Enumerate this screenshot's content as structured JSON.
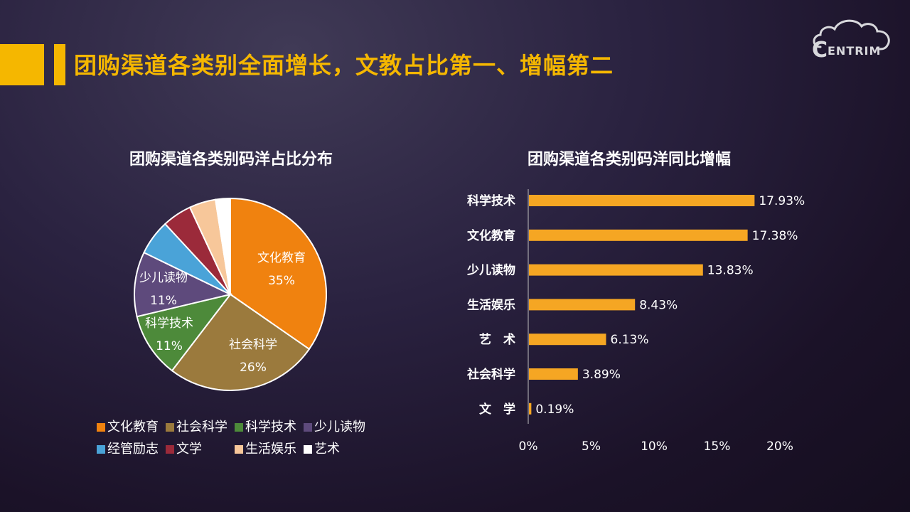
{
  "slide": {
    "title": "团购渠道各类别全面增长，文教占比第一、增幅第二",
    "logo_text": "ENTRIM",
    "logo_letter": "C"
  },
  "colors": {
    "accent": "#f5b700",
    "bar": "#f5a623"
  },
  "chart_data": [
    {
      "type": "pie",
      "title": "团购渠道各类别码洋占比分布",
      "slices": [
        {
          "name": "文化教育",
          "value": 35,
          "label": "35%",
          "color": "#f0820f",
          "show_label": true
        },
        {
          "name": "社会科学",
          "value": 26,
          "label": "26%",
          "color": "#9b7a3d",
          "show_label": true
        },
        {
          "name": "科学技术",
          "value": 11,
          "label": "11%",
          "color": "#4d8a3a",
          "show_label": true
        },
        {
          "name": "少儿读物",
          "value": 11,
          "label": "11%",
          "color": "#5e4a7c",
          "show_label": true
        },
        {
          "name": "经管励志",
          "value": 6,
          "label": "",
          "color": "#4aa3d8",
          "show_label": false
        },
        {
          "name": "文学",
          "value": 5,
          "label": "",
          "color": "#9b2a3a",
          "show_label": false
        },
        {
          "name": "生活娱乐",
          "value": 4.5,
          "label": "",
          "color": "#f7c79a",
          "show_label": false
        },
        {
          "name": "艺术",
          "value": 2.5,
          "label": "",
          "color": "#ffffff",
          "show_label": false
        }
      ],
      "legend": {
        "placement": "bottom",
        "rows": [
          [
            "文化教育",
            "社会科学",
            "科学技术",
            "少儿读物"
          ],
          [
            "经管励志",
            "文学",
            "生活娱乐",
            "艺术"
          ]
        ]
      }
    },
    {
      "type": "bar",
      "orientation": "horizontal",
      "title": "团购渠道各类别码洋同比增幅",
      "categories": [
        "科学技术",
        "文化教育",
        "少儿读物",
        "生活娱乐",
        "艺　术",
        "社会科学",
        "文　学"
      ],
      "values": [
        17.93,
        17.38,
        13.83,
        8.43,
        6.13,
        3.89,
        0.19
      ],
      "value_labels": [
        "17.93%",
        "17.38%",
        "13.83%",
        "8.43%",
        "6.13%",
        "3.89%",
        "0.19%"
      ],
      "xlim": [
        0,
        20
      ],
      "xticks": [
        0,
        5,
        10,
        15,
        20
      ],
      "xtick_labels": [
        "0%",
        "5%",
        "10%",
        "15%",
        "20%"
      ],
      "grid": false
    }
  ]
}
